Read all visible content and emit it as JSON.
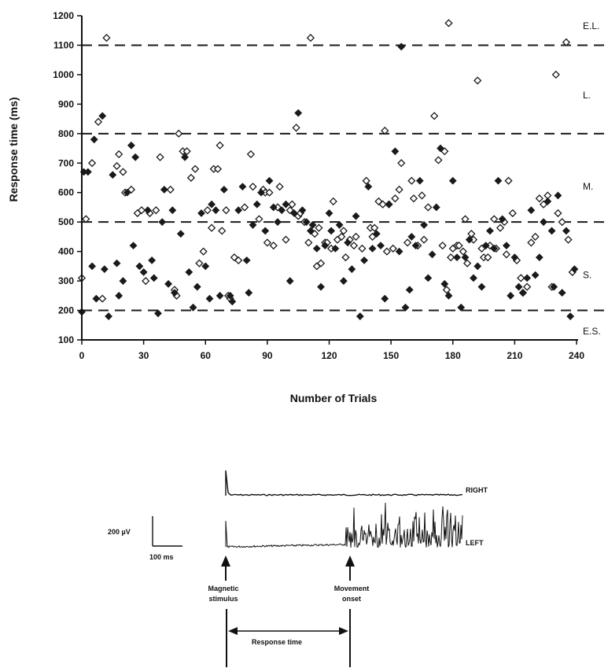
{
  "chart_data": {
    "type": "scatter",
    "title": "",
    "xlabel": "Number of Trials",
    "ylabel": "Response time (ms)",
    "xlim": [
      0,
      240
    ],
    "ylim": [
      100,
      1200
    ],
    "x_ticks": [
      0,
      30,
      60,
      90,
      120,
      150,
      180,
      210,
      240
    ],
    "y_ticks": [
      100,
      200,
      300,
      400,
      500,
      600,
      700,
      800,
      900,
      1000,
      1100,
      1200
    ],
    "thresholds": [
      {
        "value": 1100,
        "label": "E.L."
      },
      {
        "value": 800,
        "label": "L."
      },
      {
        "value": 500,
        "label": "M."
      },
      {
        "value": 200,
        "label": "E.S."
      }
    ],
    "zone_labels": [
      {
        "text": "E.L.",
        "level": 1165
      },
      {
        "text": "L.",
        "level": 930
      },
      {
        "text": "M.",
        "level": 620
      },
      {
        "text": "S.",
        "level": 320
      },
      {
        "text": "E.S.",
        "level": 130
      }
    ],
    "colors": {
      "marker": "#1a1a1a",
      "line": "#1a1a1a"
    },
    "series": [
      {
        "marker": "diamond-open",
        "x": [
          0,
          2,
          5,
          8,
          10,
          12,
          17,
          18,
          20,
          21,
          24,
          27,
          29,
          31,
          33,
          36,
          38,
          43,
          45,
          46,
          47,
          49,
          51,
          53,
          55,
          57,
          59,
          61,
          63,
          64,
          66,
          67,
          68,
          70,
          71,
          72,
          74,
          76,
          79,
          82,
          83,
          86,
          88,
          89,
          90,
          91,
          93,
          95,
          96,
          99,
          101,
          102,
          104,
          105,
          106,
          108,
          110,
          111,
          113,
          114,
          115,
          116,
          118,
          119,
          121,
          122,
          124,
          126,
          127,
          128,
          130,
          132,
          133,
          136,
          138,
          140,
          141,
          142,
          144,
          146,
          147,
          148,
          149,
          151,
          152,
          154,
          155,
          158,
          160,
          161,
          163,
          165,
          166,
          168,
          171,
          173,
          175,
          176,
          177,
          178,
          179,
          180,
          182,
          183,
          185,
          186,
          187,
          189,
          190,
          192,
          194,
          195,
          197,
          198,
          200,
          201,
          203,
          205,
          206,
          207,
          209,
          211,
          213,
          214,
          216,
          218,
          220,
          222,
          224,
          226,
          228,
          230,
          231,
          233,
          235,
          236,
          238
        ],
        "y": [
          310,
          510,
          700,
          840,
          240,
          1125,
          690,
          730,
          670,
          600,
          610,
          530,
          540,
          300,
          530,
          540,
          720,
          610,
          270,
          250,
          800,
          740,
          740,
          650,
          680,
          360,
          400,
          540,
          480,
          680,
          680,
          760,
          470,
          540,
          250,
          240,
          380,
          370,
          550,
          730,
          620,
          510,
          610,
          600,
          430,
          600,
          420,
          550,
          620,
          440,
          540,
          560,
          820,
          520,
          530,
          500,
          430,
          1125,
          460,
          350,
          480,
          360,
          430,
          430,
          410,
          570,
          440,
          450,
          470,
          380,
          440,
          420,
          450,
          410,
          640,
          480,
          450,
          480,
          570,
          560,
          810,
          400,
          560,
          410,
          580,
          610,
          700,
          430,
          640,
          580,
          420,
          590,
          440,
          550,
          860,
          710,
          420,
          740,
          270,
          1175,
          380,
          410,
          420,
          420,
          400,
          510,
          360,
          460,
          440,
          980,
          410,
          380,
          380,
          420,
          510,
          410,
          480,
          500,
          390,
          640,
          530,
          370,
          310,
          260,
          280,
          430,
          450,
          580,
          560,
          590,
          280,
          1000,
          530,
          500,
          1110,
          440,
          330
        ]
      },
      {
        "marker": "diamond-filled",
        "x": [
          0,
          1,
          3,
          5,
          6,
          7,
          10,
          11,
          13,
          15,
          17,
          18,
          20,
          22,
          24,
          25,
          26,
          28,
          30,
          32,
          34,
          35,
          37,
          39,
          40,
          42,
          44,
          45,
          48,
          50,
          52,
          54,
          56,
          58,
          60,
          62,
          63,
          65,
          67,
          69,
          72,
          73,
          76,
          78,
          80,
          81,
          83,
          85,
          87,
          89,
          91,
          93,
          95,
          97,
          99,
          101,
          103,
          105,
          107,
          109,
          111,
          112,
          114,
          116,
          118,
          120,
          121,
          123,
          125,
          127,
          129,
          131,
          133,
          135,
          137,
          139,
          141,
          143,
          145,
          147,
          149,
          152,
          154,
          155,
          157,
          159,
          160,
          162,
          164,
          166,
          168,
          170,
          172,
          174,
          176,
          178,
          180,
          182,
          184,
          186,
          188,
          190,
          192,
          194,
          196,
          198,
          200,
          202,
          204,
          206,
          208,
          210,
          212,
          214,
          216,
          218,
          220,
          222,
          224,
          226,
          228,
          229,
          231,
          233,
          235,
          237,
          239
        ],
        "y": [
          195,
          670,
          670,
          350,
          780,
          240,
          860,
          340,
          180,
          660,
          360,
          250,
          300,
          600,
          760,
          420,
          720,
          350,
          330,
          540,
          370,
          310,
          190,
          500,
          610,
          290,
          540,
          260,
          460,
          720,
          330,
          210,
          280,
          530,
          350,
          240,
          560,
          540,
          250,
          610,
          250,
          230,
          540,
          620,
          370,
          260,
          490,
          560,
          600,
          470,
          640,
          550,
          500,
          540,
          560,
          300,
          530,
          870,
          540,
          500,
          470,
          490,
          410,
          280,
          420,
          530,
          470,
          410,
          490,
          300,
          430,
          340,
          520,
          180,
          370,
          620,
          410,
          460,
          420,
          240,
          560,
          740,
          400,
          1095,
          210,
          270,
          450,
          420,
          640,
          490,
          310,
          390,
          550,
          750,
          290,
          250,
          640,
          380,
          210,
          380,
          440,
          310,
          350,
          280,
          420,
          470,
          410,
          640,
          510,
          420,
          250,
          380,
          280,
          260,
          310,
          540,
          320,
          380,
          500,
          570,
          470,
          280,
          590,
          260,
          470,
          180,
          340
        ]
      }
    ]
  },
  "emg_figure": {
    "traces": [
      {
        "label": "RIGHT"
      },
      {
        "label": "LEFT"
      }
    ],
    "scale_bar": {
      "amplitude": "200 µV",
      "time": "100 ms"
    },
    "markers": [
      {
        "label_lines": [
          "Magnetic",
          "stimulus"
        ]
      },
      {
        "label_lines": [
          "Movement",
          "onset"
        ]
      }
    ],
    "response_label": "Response time"
  }
}
